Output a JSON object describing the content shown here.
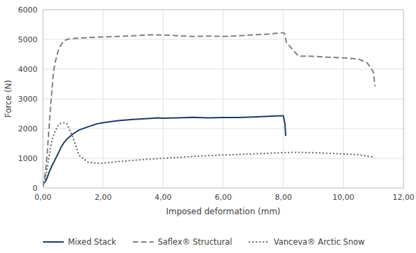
{
  "chart_data": {
    "type": "line",
    "xlabel": "Imposed deformation (mm)",
    "ylabel": "Force (N)",
    "xlim": [
      0,
      12
    ],
    "ylim": [
      0,
      6000
    ],
    "xticks": [
      {
        "value": 0,
        "label": "0,00"
      },
      {
        "value": 2,
        "label": "2,00"
      },
      {
        "value": 4,
        "label": "4,00"
      },
      {
        "value": 6,
        "label": "6,00"
      },
      {
        "value": 8,
        "label": "8,00"
      },
      {
        "value": 10,
        "label": "10,00"
      },
      {
        "value": 12,
        "label": "12,00"
      }
    ],
    "yticks": [
      0,
      1000,
      2000,
      3000,
      4000,
      5000,
      6000
    ],
    "grid": true,
    "legend": "bottom",
    "series": [
      {
        "name": "Mixed Stack",
        "color": "#1f3864",
        "line_style": "solid",
        "x": [
          0.0,
          0.05,
          0.1,
          0.15,
          0.2,
          0.3,
          0.4,
          0.5,
          0.6,
          0.7,
          0.8,
          1.0,
          1.2,
          1.5,
          1.8,
          2.0,
          2.5,
          3.0,
          3.5,
          3.8,
          4.0,
          4.5,
          5.0,
          5.5,
          6.0,
          6.5,
          7.0,
          7.5,
          7.9,
          8.0,
          8.05,
          8.08
        ],
        "values": [
          150,
          180,
          250,
          380,
          520,
          750,
          950,
          1150,
          1370,
          1530,
          1650,
          1820,
          1950,
          2060,
          2160,
          2200,
          2270,
          2310,
          2340,
          2360,
          2350,
          2360,
          2380,
          2360,
          2370,
          2370,
          2390,
          2410,
          2430,
          2430,
          2180,
          1750
        ]
      },
      {
        "name": "Saflex® Structural",
        "color": "#808080",
        "line_style": "dashed",
        "x": [
          0.0,
          0.05,
          0.1,
          0.15,
          0.2,
          0.25,
          0.3,
          0.35,
          0.4,
          0.5,
          0.6,
          0.7,
          0.8,
          0.9,
          1.0,
          1.5,
          2.0,
          2.5,
          3.0,
          3.5,
          4.0,
          4.5,
          5.0,
          5.5,
          6.0,
          6.5,
          7.0,
          7.5,
          7.9,
          8.0,
          8.05,
          8.1,
          8.5,
          9.0,
          9.5,
          10.0,
          10.5,
          10.8,
          11.0,
          11.05
        ],
        "values": [
          50,
          300,
          700,
          1300,
          2000,
          2700,
          3300,
          3900,
          4200,
          4600,
          4820,
          4950,
          5000,
          5020,
          5030,
          5060,
          5080,
          5100,
          5120,
          5150,
          5150,
          5120,
          5100,
          5110,
          5100,
          5120,
          5150,
          5180,
          5220,
          5220,
          5180,
          4900,
          4440,
          4430,
          4400,
          4380,
          4340,
          4200,
          3900,
          3420
        ]
      },
      {
        "name": "Vanceva® Arctic Snow",
        "color": "#606060",
        "line_style": "dotted",
        "x": [
          0.0,
          0.05,
          0.1,
          0.15,
          0.2,
          0.25,
          0.3,
          0.4,
          0.5,
          0.6,
          0.7,
          0.75,
          0.8,
          1.0,
          1.2,
          1.5,
          1.8,
          2.0,
          2.5,
          3.0,
          3.5,
          4.0,
          4.5,
          5.0,
          5.5,
          6.0,
          6.5,
          7.0,
          7.5,
          8.0,
          8.5,
          9.0,
          9.5,
          10.0,
          10.5,
          11.0
        ],
        "values": [
          50,
          200,
          450,
          750,
          1050,
          1350,
          1600,
          1900,
          2100,
          2180,
          2200,
          2200,
          2150,
          1700,
          1100,
          870,
          830,
          840,
          890,
          930,
          970,
          1000,
          1030,
          1060,
          1090,
          1110,
          1130,
          1150,
          1170,
          1190,
          1200,
          1190,
          1170,
          1150,
          1120,
          1040
        ]
      }
    ]
  }
}
